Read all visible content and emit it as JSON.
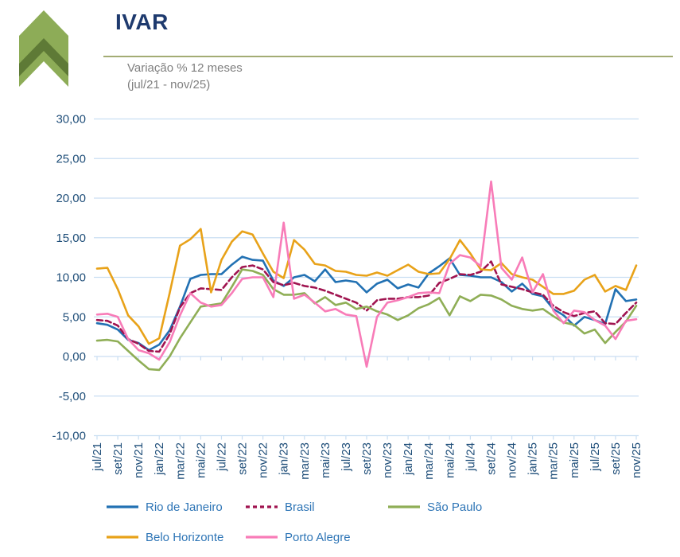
{
  "header": {
    "title": "IVAR",
    "subtitle_line1": "Variação % 12 meses",
    "subtitle_line2": "(jul/21 - nov/25)"
  },
  "logo": {
    "label": "ibre-green-arrow-logo",
    "outer_color": "#8dac57",
    "inner_color": "#5e7a36"
  },
  "style_colors": {
    "axis_text": "#1f4e79",
    "gridline": "#c9def2",
    "legend_text": "#2e75b6",
    "title_text": "#1e3a6e",
    "subtitle_text": "#7f7f7f",
    "header_rule": "#a3ac74"
  },
  "chart_data": {
    "type": "line",
    "title": "IVAR",
    "subtitle": "Variação % 12 meses (jul/21 - nov/25)",
    "ylabel": "",
    "xlabel": "",
    "ylim": [
      -10,
      30
    ],
    "ytick_step": 5,
    "ytick_labels": [
      "30,00",
      "25,00",
      "20,00",
      "15,00",
      "10,00",
      "5,00",
      "0,00",
      "-5,00",
      "-10,00"
    ],
    "grid": "horizontal",
    "legend_position": "bottom",
    "x": [
      "jul/21",
      "ago/21",
      "set/21",
      "out/21",
      "nov/21",
      "dez/21",
      "jan/22",
      "fev/22",
      "mar/22",
      "abr/22",
      "mai/22",
      "jun/22",
      "jul/22",
      "ago/22",
      "set/22",
      "out/22",
      "nov/22",
      "dez/22",
      "jan/23",
      "fev/23",
      "mar/23",
      "abr/23",
      "mai/23",
      "jun/23",
      "jul/23",
      "ago/23",
      "set/23",
      "out/23",
      "nov/23",
      "dez/23",
      "jan/24",
      "fev/24",
      "mar/24",
      "abr/24",
      "mai/24",
      "jun/24",
      "jul/24",
      "ago/24",
      "set/24",
      "out/24",
      "nov/24",
      "dez/24",
      "jan/25",
      "fev/25",
      "mar/25",
      "abr/25",
      "mai/25",
      "jun/25",
      "jul/25",
      "ago/25",
      "set/25",
      "out/25",
      "nov/25"
    ],
    "xtick_labels": [
      "jul/21",
      "set/21",
      "nov/21",
      "jan/22",
      "mar/22",
      "mai/22",
      "jul/22",
      "set/22",
      "nov/22",
      "jan/23",
      "mar/23",
      "mai/23",
      "jul/23",
      "set/23",
      "nov/23",
      "jan/24",
      "mar/24",
      "mai/24",
      "jul/24",
      "set/24",
      "nov/24",
      "jan/25",
      "mar/25",
      "mai/25",
      "jul/25",
      "set/25",
      "nov/25"
    ],
    "series": [
      {
        "name": "Rio de Janeiro",
        "color": "#2271b3",
        "dash": null,
        "values": [
          4.2,
          4.0,
          3.4,
          2.1,
          1.7,
          0.8,
          1.5,
          3.3,
          6.3,
          9.8,
          10.3,
          10.4,
          10.4,
          11.6,
          12.6,
          12.2,
          12.1,
          9.6,
          8.9,
          10.0,
          10.3,
          9.5,
          11.0,
          9.4,
          9.6,
          9.4,
          8.1,
          9.2,
          9.7,
          8.6,
          9.1,
          8.7,
          10.5,
          11.4,
          12.4,
          10.3,
          10.2,
          10.0,
          10.0,
          9.4,
          8.2,
          9.2,
          7.9,
          7.6,
          6.0,
          5.2,
          3.9,
          5.0,
          4.6,
          4.1,
          8.5,
          7.0,
          7.2
        ]
      },
      {
        "name": "Brasil",
        "color": "#a01450",
        "dash": "7 4",
        "values": [
          4.6,
          4.5,
          3.9,
          2.2,
          1.6,
          0.7,
          0.6,
          2.8,
          6.2,
          8.0,
          8.6,
          8.5,
          8.4,
          10.0,
          11.3,
          11.5,
          11.0,
          9.4,
          9.0,
          9.3,
          8.9,
          8.7,
          8.3,
          7.8,
          7.3,
          6.8,
          5.8,
          7.1,
          7.3,
          7.3,
          7.5,
          7.5,
          7.7,
          9.3,
          9.8,
          10.4,
          10.3,
          10.7,
          12.0,
          9.1,
          8.8,
          8.5,
          8.1,
          7.8,
          6.4,
          5.6,
          5.1,
          5.5,
          5.7,
          4.2,
          4.1,
          5.5,
          6.8
        ]
      },
      {
        "name": "São Paulo",
        "color": "#8fae56",
        "dash": null,
        "values": [
          2.0,
          2.1,
          1.9,
          0.7,
          -0.5,
          -1.6,
          -1.7,
          0.0,
          2.3,
          4.3,
          6.3,
          6.5,
          6.7,
          8.8,
          11.0,
          10.8,
          10.3,
          8.5,
          7.8,
          7.8,
          8.0,
          6.7,
          7.5,
          6.5,
          6.8,
          6.0,
          6.3,
          5.7,
          5.3,
          4.6,
          5.2,
          6.1,
          6.6,
          7.4,
          5.2,
          7.6,
          7.0,
          7.8,
          7.7,
          7.2,
          6.4,
          6.0,
          5.8,
          6.0,
          5.1,
          4.3,
          4.0,
          2.9,
          3.4,
          1.7,
          3.1,
          4.4,
          6.4
        ]
      },
      {
        "name": "Belo Horizonte",
        "color": "#e8a219",
        "dash": null,
        "values": [
          11.1,
          11.2,
          8.5,
          5.2,
          3.8,
          1.6,
          2.3,
          8.0,
          14.0,
          14.8,
          16.1,
          8.1,
          12.2,
          14.5,
          15.8,
          15.4,
          13.0,
          10.7,
          9.9,
          14.7,
          13.5,
          11.7,
          11.5,
          10.8,
          10.7,
          10.3,
          10.2,
          10.6,
          10.2,
          10.9,
          11.6,
          10.7,
          10.4,
          10.5,
          12.3,
          14.7,
          13.0,
          11.0,
          10.9,
          11.8,
          10.4,
          10.0,
          9.7,
          8.8,
          7.9,
          7.9,
          8.3,
          9.7,
          10.3,
          8.2,
          8.9,
          8.4,
          11.5
        ]
      },
      {
        "name": "Porto Alegre",
        "color": "#f87cb8",
        "dash": null,
        "values": [
          5.3,
          5.4,
          5.0,
          2.2,
          0.8,
          0.4,
          -0.4,
          1.8,
          5.2,
          8.0,
          6.8,
          6.3,
          6.5,
          8.0,
          9.8,
          10.0,
          10.0,
          7.5,
          16.9,
          7.3,
          7.8,
          6.8,
          5.7,
          6.0,
          5.3,
          5.1,
          -1.3,
          5.0,
          6.8,
          7.1,
          7.5,
          8.0,
          8.1,
          8.0,
          11.7,
          12.8,
          12.5,
          11.4,
          22.1,
          11.2,
          9.7,
          12.5,
          8.1,
          10.4,
          5.8,
          4.2,
          5.8,
          5.6,
          4.6,
          3.9,
          2.2,
          4.5,
          4.7
        ]
      }
    ],
    "legend_rows": [
      [
        0,
        1,
        2
      ],
      [
        3,
        4
      ]
    ]
  }
}
